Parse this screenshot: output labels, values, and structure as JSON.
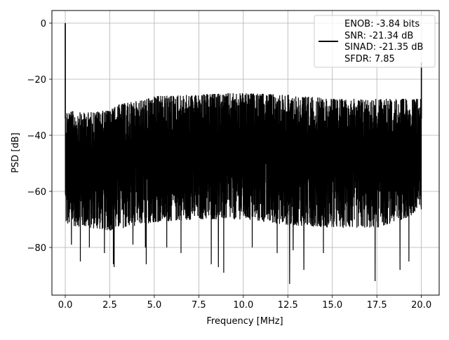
{
  "chart_data": {
    "type": "line",
    "xlabel": "Frequency [MHz]",
    "ylabel": "PSD [dB]",
    "xlim": [
      -0.75,
      21.0
    ],
    "ylim": [
      -97,
      4.5
    ],
    "xticks": [
      0.0,
      2.5,
      5.0,
      7.5,
      10.0,
      12.5,
      15.0,
      17.5,
      20.0
    ],
    "xtick_labels": [
      "0.0",
      "2.5",
      "5.0",
      "7.5",
      "10.0",
      "12.5",
      "15.0",
      "17.5",
      "20.0"
    ],
    "yticks": [
      0,
      -20,
      -40,
      -60,
      -80
    ],
    "ytick_labels": [
      "0",
      "−20",
      "−40",
      "−60",
      "−80"
    ],
    "grid": true,
    "line_color": "#000000",
    "grid_color": "#b0b0b0",
    "legend": {
      "placement": "upper right",
      "lines": [
        "ENOB: -3.84 bits",
        "SNR: -21.34 dB",
        "SINAD: -21.35 dB",
        "SFDR: 7.85"
      ]
    },
    "series": [
      {
        "x_range": [
          0.0,
          20.0
        ],
        "description_note": null,
        "peaks": [
          [
            0.0,
            0.0
          ],
          [
            20.0,
            -14.0
          ]
        ],
        "upper_envelope": [
          [
            0.05,
            -31
          ],
          [
            1.0,
            -32
          ],
          [
            2.5,
            -31
          ],
          [
            3.0,
            -29
          ],
          [
            4.6,
            -27
          ],
          [
            5.0,
            -26
          ],
          [
            7.5,
            -25.5
          ],
          [
            9.0,
            -25
          ],
          [
            10.0,
            -25
          ],
          [
            12.5,
            -25.5
          ],
          [
            15.0,
            -27
          ],
          [
            17.5,
            -27
          ],
          [
            19.9,
            -27
          ]
        ],
        "noise_floor_center": [
          [
            0.05,
            -48
          ],
          [
            5.0,
            -46
          ],
          [
            10.0,
            -45
          ],
          [
            15.0,
            -46
          ],
          [
            19.9,
            -47
          ]
        ],
        "lower_envelope": [
          [
            0.05,
            -72
          ],
          [
            2.5,
            -74
          ],
          [
            5.0,
            -71
          ],
          [
            7.5,
            -70
          ],
          [
            10.0,
            -70
          ],
          [
            12.5,
            -72
          ],
          [
            15.0,
            -73
          ],
          [
            17.5,
            -73
          ],
          [
            19.9,
            -68
          ]
        ],
        "deep_nulls": [
          [
            0.35,
            -79
          ],
          [
            0.85,
            -85
          ],
          [
            1.35,
            -80
          ],
          [
            2.2,
            -82
          ],
          [
            2.7,
            -86
          ],
          [
            2.75,
            -87
          ],
          [
            3.8,
            -79
          ],
          [
            4.5,
            -80
          ],
          [
            4.55,
            -86
          ],
          [
            5.7,
            -80
          ],
          [
            6.5,
            -82
          ],
          [
            8.2,
            -86
          ],
          [
            8.6,
            -87
          ],
          [
            8.9,
            -89
          ],
          [
            10.5,
            -80
          ],
          [
            11.9,
            -82
          ],
          [
            12.6,
            -93
          ],
          [
            12.8,
            -81
          ],
          [
            13.4,
            -88
          ],
          [
            14.5,
            -82
          ],
          [
            17.4,
            -92
          ],
          [
            18.8,
            -88
          ],
          [
            19.3,
            -85
          ]
        ]
      }
    ]
  }
}
